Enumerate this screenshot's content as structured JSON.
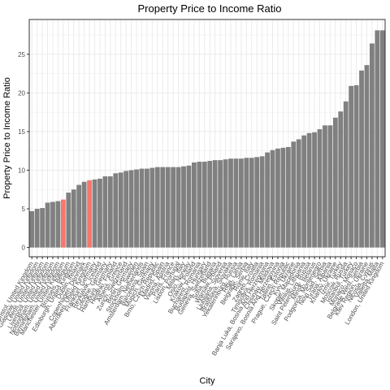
{
  "chart_data": {
    "type": "bar",
    "title": "Property Price to Income Ratio",
    "xlabel": "City",
    "ylabel": "Property Price to Income Ratio",
    "ylim": [
      -1.2,
      29.5
    ],
    "yticks": [
      0,
      5,
      10,
      15,
      20,
      25
    ],
    "grid": true,
    "legend": "none",
    "colors": {
      "default": "#808080",
      "highlight": "#f8766d",
      "panel_border": "#333333",
      "grid": "#ebebeb"
    },
    "categories": [
      "Bristol, United Kingdom",
      "Glasgow, United Kingdom",
      "Leeds, United Kingdom",
      "Liverpool, United Kingdom",
      "Nottingham, United Kingdom",
      "Birmingham, United Kingdom",
      "Manchester, United Kingdom",
      "Brussels, Belgium",
      "Edinburgh, United Kingdom",
      "Dublin, Ireland",
      "Copenhagen, Denmark",
      "Aberdeen, United Kingdom",
      "Frankfurt, Germany",
      "Reykjavik, Iceland",
      "Cologne, Germany",
      "Hamburg, Germany",
      "Helsinki, Finland",
      "Athens, Greece",
      "Zurich, Switzerland",
      "Berlin, Germany",
      "Stockholm, Sweden",
      "Amsterdam, Netherlands",
      "Barcelona, Spain",
      "Munich, Germany",
      "Brno, Czech Republic",
      "Madrid, Spain",
      "Vienna, Austria",
      "Paris, France",
      "Lisbon, Portugal",
      "Milan, Italy",
      "Oslo, Norway",
      "Krakow, Poland",
      "Bucharest, Romania",
      "Budapest, Hungary",
      "Geneva, Switzerland",
      "Sofia, Bulgaria",
      "Warsaw, Poland",
      "Ljubljana, Slovenia",
      "Bratislava, Slovakia",
      "Yekaterinburg, Russia",
      "Riga, Latvia",
      "Belgrade, Serbia",
      "Rome, Italy",
      "Zagreb, Croatia",
      "Timisoara, Romania",
      "Banja Luka, Bosnia And Herzegovina",
      "Chisinau, Moldova",
      "Sarajevo, Bosnia And Herzegovina",
      "Tallinn, Estonia",
      "Prague, Czech Republic",
      "Kyiv, Ukraine",
      "Skopje, Macedonia",
      "Vilnius, Lithuania",
      "Saint Petersburg, Russia",
      "Minsk, Belarus",
      "Podgorica, Montenegro",
      "Novi Sad, Serbia",
      "Tirana, Albania",
      "Kharkiv, Ukraine",
      "Izmir, Turkey",
      "Moscow, Russia",
      "Istanbul, Turkey",
      "Monaco, Monaco",
      "Belgrade West, Serbia",
      "Kiev Region, Ukraine",
      "Nicosia, Cyprus",
      "Valletta, Malta",
      "London, United Kingdom"
    ],
    "values": [
      4.7,
      5.0,
      5.1,
      5.8,
      5.9,
      6.0,
      6.2,
      7.1,
      7.5,
      8.1,
      8.5,
      8.7,
      8.8,
      8.9,
      9.2,
      9.2,
      9.6,
      9.7,
      9.9,
      10.0,
      10.1,
      10.2,
      10.2,
      10.3,
      10.4,
      10.4,
      10.4,
      10.4,
      10.4,
      10.5,
      10.6,
      11.0,
      11.1,
      11.1,
      11.2,
      11.3,
      11.3,
      11.4,
      11.5,
      11.5,
      11.5,
      11.6,
      11.6,
      11.7,
      11.8,
      12.3,
      12.6,
      12.8,
      12.9,
      13.0,
      13.7,
      14.0,
      14.5,
      14.8,
      14.9,
      15.3,
      15.8,
      15.8,
      16.8,
      17.6,
      18.9,
      20.9,
      21.0,
      22.9,
      23.6,
      26.4,
      28.1,
      28.1
    ],
    "highlighted": [
      "Manchester, United Kingdom",
      "Aberdeen, United Kingdom"
    ]
  }
}
